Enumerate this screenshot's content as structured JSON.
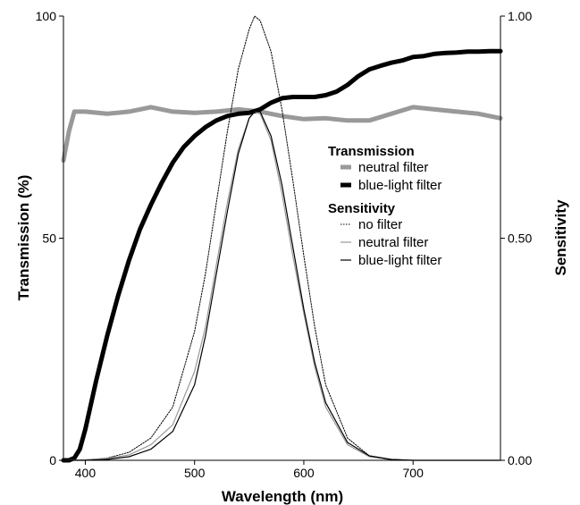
{
  "chart_data": {
    "type": "line",
    "xlabel": "Wavelength (nm)",
    "ylabel_left": "Transmission (%)",
    "ylabel_right": "Sensitivity",
    "xlim": [
      380,
      780
    ],
    "ylim_left": [
      0,
      100
    ],
    "ylim_right": [
      0,
      1
    ],
    "x_ticks": [
      400,
      500,
      600,
      700
    ],
    "y_left_ticks": [
      0,
      50,
      100
    ],
    "y_left_tick_labels": [
      "0",
      "50",
      "100"
    ],
    "y_right_ticks": [
      0,
      0.5,
      1
    ],
    "y_right_tick_labels": [
      "0.00",
      "0.50",
      "1.00"
    ],
    "grid": false,
    "legend": {
      "placement": "right-center",
      "groups": [
        {
          "heading": "Transmission",
          "entries": [
            {
              "label": "neutral filter",
              "color": "#999999",
              "width": 5,
              "dash": ""
            },
            {
              "label": "blue-light filter",
              "color": "#000000",
              "width": 5,
              "dash": ""
            }
          ]
        },
        {
          "heading": "Sensitivity",
          "entries": [
            {
              "label": "no filter",
              "color": "#000000",
              "width": 1,
              "dash": "1.5,1.5"
            },
            {
              "label": "neutral filter",
              "color": "#999999",
              "width": 1.2,
              "dash": ""
            },
            {
              "label": "blue-light filter",
              "color": "#000000",
              "width": 1.2,
              "dash": ""
            }
          ]
        }
      ]
    },
    "series": [
      {
        "group": "Transmission",
        "label": "neutral filter",
        "axis": "left",
        "color": "#999999",
        "width": 5,
        "dash": "",
        "x": [
          380,
          385,
          390,
          400,
          420,
          440,
          460,
          480,
          500,
          520,
          540,
          560,
          580,
          600,
          620,
          640,
          660,
          680,
          700,
          720,
          740,
          760,
          780
        ],
        "y": [
          67.5,
          74,
          78.5,
          78.5,
          78,
          78.5,
          79.5,
          78.5,
          78.2,
          78.5,
          79,
          78.5,
          77.5,
          76.8,
          77,
          76.5,
          76.5,
          78,
          79.5,
          79,
          78.5,
          78,
          77
        ]
      },
      {
        "group": "Transmission",
        "label": "blue-light filter",
        "axis": "left",
        "color": "#000000",
        "width": 5,
        "dash": "",
        "x": [
          380,
          385,
          390,
          395,
          400,
          410,
          420,
          430,
          440,
          450,
          460,
          470,
          480,
          490,
          500,
          510,
          520,
          530,
          540,
          550,
          560,
          570,
          580,
          590,
          600,
          610,
          620,
          630,
          640,
          650,
          660,
          670,
          680,
          690,
          700,
          710,
          720,
          730,
          740,
          750,
          760,
          770,
          780
        ],
        "y": [
          0,
          0,
          0.5,
          2.5,
          7,
          18,
          28,
          37,
          45,
          52,
          57.5,
          62.5,
          67,
          70.5,
          73,
          75,
          76.5,
          77.5,
          78,
          78.2,
          79,
          80.5,
          81.5,
          81.8,
          81.8,
          81.8,
          82.2,
          83,
          84.5,
          86.5,
          88,
          88.8,
          89.5,
          90,
          90.8,
          91,
          91.5,
          91.7,
          91.8,
          92,
          92,
          92.1,
          92.1
        ]
      },
      {
        "group": "Sensitivity",
        "label": "no filter",
        "axis": "right",
        "color": "#000000",
        "width": 1,
        "dash": "1.5,1.5",
        "x": [
          380,
          400,
          420,
          440,
          460,
          480,
          500,
          510,
          520,
          530,
          540,
          550,
          555,
          560,
          570,
          580,
          590,
          600,
          610,
          620,
          640,
          660,
          680,
          700,
          720,
          740,
          760,
          780
        ],
        "y": [
          0,
          0.001,
          0.005,
          0.018,
          0.05,
          0.12,
          0.29,
          0.42,
          0.58,
          0.74,
          0.88,
          0.97,
          1.0,
          0.99,
          0.92,
          0.79,
          0.63,
          0.46,
          0.3,
          0.17,
          0.05,
          0.01,
          0.002,
          0,
          0,
          0,
          0,
          0
        ]
      },
      {
        "group": "Sensitivity",
        "label": "neutral filter",
        "axis": "right",
        "color": "#999999",
        "width": 1.2,
        "dash": "",
        "x": [
          380,
          400,
          420,
          440,
          460,
          480,
          500,
          510,
          520,
          530,
          540,
          550,
          555,
          560,
          570,
          580,
          590,
          600,
          610,
          620,
          640,
          660,
          680,
          700,
          720,
          740,
          760,
          780
        ],
        "y": [
          0,
          0.001,
          0.004,
          0.012,
          0.035,
          0.08,
          0.2,
          0.3,
          0.44,
          0.58,
          0.7,
          0.77,
          0.785,
          0.78,
          0.72,
          0.6,
          0.46,
          0.33,
          0.21,
          0.12,
          0.035,
          0.008,
          0.001,
          0,
          0,
          0,
          0,
          0
        ]
      },
      {
        "group": "Sensitivity",
        "label": "blue-light filter",
        "axis": "right",
        "color": "#000000",
        "width": 1.2,
        "dash": "",
        "x": [
          380,
          400,
          420,
          440,
          460,
          480,
          500,
          510,
          520,
          530,
          540,
          550,
          555,
          560,
          570,
          580,
          590,
          600,
          610,
          620,
          640,
          660,
          680,
          700,
          720,
          740,
          760,
          780
        ],
        "y": [
          0,
          0,
          0.002,
          0.008,
          0.025,
          0.065,
          0.17,
          0.28,
          0.42,
          0.56,
          0.69,
          0.77,
          0.785,
          0.785,
          0.73,
          0.62,
          0.48,
          0.34,
          0.22,
          0.13,
          0.04,
          0.01,
          0.002,
          0,
          0,
          0,
          0,
          0
        ]
      }
    ]
  }
}
